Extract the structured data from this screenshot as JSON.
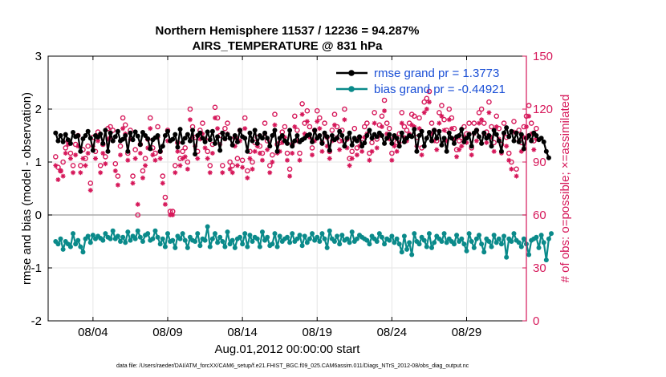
{
  "chart_data": {
    "type": "line",
    "title": [
      "Northern Hemisphere 11537 / 12236 = 94.287%",
      "AIRS_TEMPERATURE @ 831 hPa"
    ],
    "xlabel": "Aug.01,2012 00:00:00 start",
    "ylabel_left": "rmse and bias (model - observation)",
    "ylabel_right": "# of obs: o=possible; ×=assimilated",
    "footer": "data file: /Users/raeder/DAI/ATM_forcXX/CAM6_setup/f.e21.FHIST_BGC.f09_025.CAM6assim.011/Diags_NTrS_2012-08/obs_diag_output.nc",
    "xlim": [
      0.5,
      32.5
    ],
    "ylim_left": [
      -2,
      3
    ],
    "ylim_right": [
      0,
      150
    ],
    "x_ticks": [
      3.5,
      8.5,
      13.5,
      18.5,
      23.5,
      28.5
    ],
    "x_tick_labels": [
      "08/04",
      "08/09",
      "08/14",
      "08/19",
      "08/24",
      "08/29"
    ],
    "y_ticks_left": [
      -2,
      -1,
      0,
      1,
      2,
      3
    ],
    "y_ticks_right": [
      0,
      30,
      60,
      90,
      120,
      150
    ],
    "colors": {
      "rmse": "#000000",
      "bias": "#0a8a8a",
      "obs": "#d6185a",
      "legend_text": "#1a4fd6",
      "zero_line": "#aaaaaa"
    },
    "legend": [
      "rmse grand pr = 1.3773",
      "bias grand pr = -0.44921"
    ],
    "series": [
      {
        "name": "rmse",
        "values": [
          1.55,
          1.4,
          1.5,
          1.38,
          1.52,
          1.42,
          1.35,
          1.56,
          1.48,
          1.5,
          1.2,
          1.44,
          1.5,
          1.58,
          1.45,
          1.22,
          1.5,
          1.47,
          1.53,
          1.35,
          1.6,
          1.2,
          1.55,
          1.4,
          1.48,
          1.58,
          1.4,
          1.43,
          1.5,
          1.2,
          1.55,
          1.42,
          1.57,
          1.49,
          1.33,
          1.56,
          1.5,
          1.44,
          1.25,
          1.42,
          1.46,
          1.5,
          1.2,
          1.3,
          1.5,
          1.58,
          1.4,
          1.43,
          1.52,
          1.28,
          1.62,
          1.37,
          1.45,
          1.52,
          1.4,
          1.6,
          1.15,
          1.5,
          1.55,
          1.45,
          1.38,
          1.57,
          1.42,
          1.58,
          1.35,
          1.48,
          1.22,
          1.55,
          1.44,
          1.52,
          1.45,
          1.32,
          1.5,
          1.38,
          1.6,
          1.48,
          1.45,
          1.2,
          1.55,
          1.4,
          1.6,
          1.35,
          1.5,
          1.45,
          1.55,
          1.45,
          1.3,
          1.5,
          1.6,
          1.2,
          1.45,
          1.5,
          1.4,
          1.35,
          1.6,
          1.3,
          1.4,
          1.5,
          1.38,
          1.42,
          1.45,
          1.5,
          1.52,
          1.38,
          1.6,
          1.45,
          1.5,
          1.35,
          1.55,
          1.48,
          1.22,
          1.5,
          1.42,
          1.45,
          1.58,
          1.5,
          1.3,
          1.45,
          1.55,
          1.32,
          1.45,
          1.4,
          1.48,
          1.3,
          1.36,
          1.5,
          1.6,
          1.45,
          1.52,
          1.48,
          1.55,
          1.5,
          1.35,
          1.45,
          1.52,
          1.35,
          1.5,
          1.45,
          1.3,
          1.55,
          1.38,
          1.45,
          1.5,
          1.48,
          1.62,
          1.2,
          1.5,
          1.58,
          1.3,
          1.45,
          1.56,
          1.4,
          1.6,
          1.45,
          1.58,
          1.32,
          1.45,
          1.2,
          1.55,
          1.45,
          1.35,
          1.48,
          1.5,
          1.62,
          1.38,
          1.45,
          1.52,
          1.3,
          1.55,
          1.6,
          1.48,
          1.35,
          1.55,
          1.45,
          1.5,
          1.3,
          1.6,
          1.52,
          1.4,
          1.2,
          1.55,
          1.65,
          1.48,
          1.58,
          1.4,
          1.55,
          1.38,
          1.52,
          1.25,
          1.45,
          1.5,
          1.4,
          1.55,
          1.5,
          1.42,
          1.45,
          1.38,
          1.2,
          1.08
        ]
      },
      {
        "name": "bias",
        "values": [
          -0.5,
          -0.55,
          -0.45,
          -0.65,
          -0.5,
          -0.55,
          -0.6,
          -0.35,
          -0.55,
          -0.48,
          -0.6,
          -0.7,
          -0.45,
          -0.4,
          -0.52,
          -0.38,
          -0.45,
          -0.4,
          -0.44,
          -0.48,
          -0.35,
          -0.42,
          -0.45,
          -0.3,
          -0.45,
          -0.4,
          -0.5,
          -0.42,
          -0.52,
          -0.32,
          -0.48,
          -0.4,
          -0.45,
          -0.3,
          -0.42,
          -0.5,
          -0.38,
          -0.35,
          -0.48,
          -0.45,
          -0.3,
          -0.42,
          -0.55,
          -0.45,
          -0.6,
          -0.35,
          -0.5,
          -0.48,
          -0.62,
          -0.4,
          -0.45,
          -0.35,
          -0.48,
          -0.62,
          -0.42,
          -0.48,
          -0.5,
          -0.35,
          -0.58,
          -0.45,
          -0.48,
          -0.22,
          -0.6,
          -0.45,
          -0.35,
          -0.52,
          -0.42,
          -0.5,
          -0.6,
          -0.32,
          -0.55,
          -0.48,
          -0.62,
          -0.45,
          -0.42,
          -0.55,
          -0.35,
          -0.6,
          -0.38,
          -0.5,
          -0.42,
          -0.45,
          -0.6,
          -0.32,
          -0.48,
          -0.42,
          -0.58,
          -0.55,
          -0.35,
          -0.6,
          -0.4,
          -0.5,
          -0.45,
          -0.42,
          -0.52,
          -0.35,
          -0.5,
          -0.45,
          -0.38,
          -0.58,
          -0.4,
          -0.52,
          -0.45,
          -0.35,
          -0.48,
          -0.42,
          -0.5,
          -0.35,
          -0.45,
          -0.62,
          -0.3,
          -0.45,
          -0.5,
          -0.4,
          -0.55,
          -0.38,
          -0.48,
          -0.45,
          -0.52,
          -0.32,
          -0.5,
          -0.45,
          -0.38,
          -0.42,
          -0.45,
          -0.48,
          -0.55,
          -0.4,
          -0.45,
          -0.5,
          -0.35,
          -0.42,
          -0.55,
          -0.45,
          -0.48,
          -0.4,
          -0.52,
          -0.45,
          -0.55,
          -0.7,
          -0.4,
          -0.65,
          -0.52,
          -0.75,
          -0.35,
          -0.5,
          -0.55,
          -0.42,
          -0.48,
          -0.6,
          -0.35,
          -0.62,
          -0.52,
          -0.4,
          -0.45,
          -0.5,
          -0.35,
          -0.52,
          -0.45,
          -0.5,
          -0.55,
          -0.38,
          -0.5,
          -0.45,
          -0.55,
          -0.68,
          -0.35,
          -0.5,
          -0.62,
          -0.45,
          -0.38,
          -0.55,
          -0.7,
          -0.45,
          -0.5,
          -0.6,
          -0.38,
          -0.52,
          -0.45,
          -0.55,
          -0.4,
          -0.8,
          -0.45,
          -0.5,
          -0.35,
          -0.48,
          -0.52,
          -0.6,
          -0.45,
          -0.55,
          -0.75,
          -0.48,
          -0.45,
          -0.42,
          -0.62,
          -0.38,
          -0.52,
          -0.85,
          -0.45,
          -0.35
        ]
      },
      {
        "name": "possible",
        "values": [
          93,
          87,
          85,
          90,
          98,
          102,
          95,
          88,
          100,
          105,
          88,
          97,
          92,
          99,
          78,
          104,
          96,
          107,
          88,
          100,
          93,
          109,
          110,
          108,
          89,
          82,
          99,
          115,
          111,
          95,
          108,
          82,
          97,
          60,
          100,
          85,
          92,
          103,
          115,
          98,
          95,
          110,
          96,
          82,
          70,
          108,
          62,
          62,
          88,
          101,
          92,
          96,
          98,
          90,
          120,
          110,
          104,
          96,
          108,
          112,
          103,
          96,
          88,
          100,
          121,
          115,
          105,
          88,
          109,
          112,
          90,
          88,
          104,
          92,
          108,
          91,
          115,
          85,
          96,
          90,
          101,
          104,
          99,
          95,
          112,
          102,
          88,
          94,
          117,
          100,
          101,
          107,
          110,
          95,
          86,
          100,
          116,
          108,
          95,
          123,
          112,
          119,
          110,
          98,
          108,
          119,
          115,
          101,
          112,
          104,
          96,
          108,
          117,
          110,
          102,
          108,
          120,
          103,
          92,
          96,
          109,
          98,
          104,
          101,
          110,
          112,
          95,
          101,
          118,
          103,
          111,
          116,
          125,
          112,
          109,
          95,
          104,
          101,
          106,
          118,
          110,
          108,
          112,
          117,
          116,
          104,
          115,
          98,
          124,
          126,
          130,
          112,
          108,
          102,
          118,
          122,
          114,
          108,
          120,
          115,
          109,
          97,
          102,
          104,
          110,
          106,
          112,
          98,
          112,
          108,
          118,
          120,
          112,
          107,
          124,
          110,
          101,
          116,
          109,
          100,
          112,
          104,
          95,
          90,
          113,
          86,
          108,
          101,
          110,
          116,
          122,
          112,
          102,
          109
        ]
      },
      {
        "name": "assimilated",
        "values": [
          88,
          80,
          85,
          82,
          95,
          100,
          92,
          84,
          94,
          99,
          84,
          92,
          88,
          95,
          74,
          99,
          92,
          102,
          84,
          95,
          89,
          103,
          104,
          102,
          85,
          77,
          94,
          109,
          106,
          91,
          103,
          78,
          92,
          66,
          95,
          81,
          88,
          98,
          109,
          94,
          91,
          104,
          92,
          78,
          66,
          102,
          60,
          60,
          84,
          96,
          88,
          92,
          93,
          86,
          114,
          104,
          99,
          92,
          103,
          106,
          98,
          92,
          84,
          95,
          115,
          109,
          100,
          84,
          103,
          106,
          86,
          84,
          99,
          88,
          102,
          87,
          109,
          81,
          92,
          86,
          96,
          99,
          95,
          91,
          106,
          97,
          84,
          90,
          111,
          95,
          96,
          101,
          104,
          91,
          82,
          95,
          110,
          102,
          91,
          117,
          106,
          113,
          104,
          94,
          102,
          113,
          109,
          96,
          106,
          99,
          92,
          102,
          111,
          104,
          97,
          102,
          114,
          98,
          88,
          92,
          103,
          94,
          99,
          96,
          104,
          106,
          91,
          96,
          112,
          98,
          105,
          110,
          119,
          106,
          103,
          91,
          99,
          96,
          101,
          112,
          104,
          102,
          106,
          111,
          110,
          99,
          109,
          94,
          118,
          120,
          124,
          106,
          102,
          97,
          112,
          116,
          108,
          102,
          114,
          109,
          103,
          93,
          97,
          99,
          104,
          101,
          106,
          94,
          106,
          102,
          112,
          114,
          106,
          101,
          118,
          104,
          96,
          110,
          103,
          95,
          106,
          99,
          91,
          86,
          107,
          82,
          102,
          96,
          104,
          110,
          116,
          106,
          97,
          103
        ]
      }
    ]
  }
}
